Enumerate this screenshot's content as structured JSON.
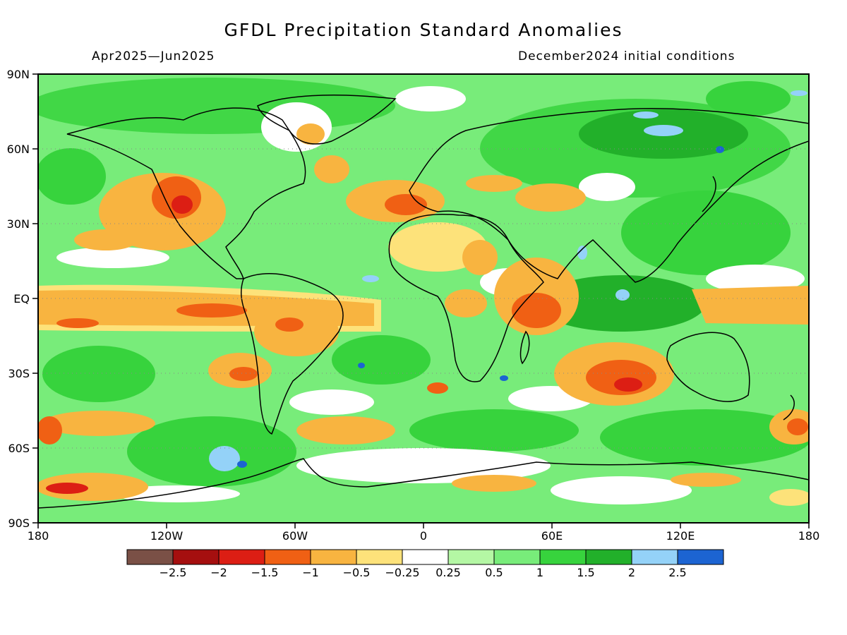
{
  "title": "GFDL Precipitation Standard Anomalies",
  "subtitle_left": "Apr2025—Jun2025",
  "subtitle_right": "December2024 initial conditions",
  "lat_labels": [
    "90N",
    "60N",
    "30N",
    "EQ",
    "30S",
    "60S",
    "90S"
  ],
  "lon_labels": [
    "180",
    "120W",
    "60W",
    "0",
    "60E",
    "120E",
    "180"
  ],
  "colorbar": {
    "colors": [
      "#7a5046",
      "#a50f0f",
      "#dc1e14",
      "#f06014",
      "#f8b440",
      "#fde27a",
      "#ffffff",
      "#b4f7a4",
      "#78ec7a",
      "#37d33d",
      "#22b02a",
      "#94d2f8",
      "#1c64d2"
    ],
    "labels": [
      "−2.5",
      "−2",
      "−1.5",
      "−1",
      "−0.5",
      "−0.25",
      "0.25",
      "0.5",
      "1",
      "1.5",
      "2",
      "2.5"
    ]
  },
  "base_color": "#78ec7a"
}
